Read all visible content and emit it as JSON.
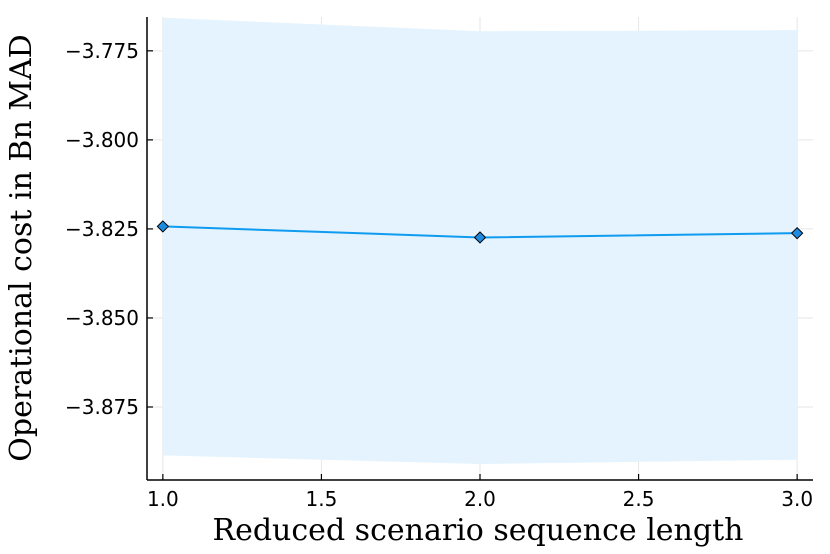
{
  "chart_data": {
    "type": "line",
    "title": "",
    "xlabel": "Reduced scenario sequence length",
    "ylabel": "Operational cost in Bn MAD",
    "xlim": [
      0.95,
      3.05
    ],
    "ylim": [
      -3.8955,
      -3.7655
    ],
    "xticks": [
      1.0,
      1.5,
      2.0,
      2.5,
      3.0
    ],
    "xtick_labels": [
      "1.0",
      "1.5",
      "2.0",
      "2.5",
      "3.0"
    ],
    "yticks": [
      -3.775,
      -3.8,
      -3.825,
      -3.85,
      -3.875
    ],
    "ytick_labels": [
      "−3.775",
      "−3.800",
      "−3.825",
      "−3.850",
      "−3.875"
    ],
    "grid": true,
    "legend": "none",
    "series": [
      {
        "x": [
          1.0,
          2.0,
          3.0
        ],
        "y": [
          -3.8243,
          -3.8274,
          -3.8262
        ],
        "band_upper": [
          -3.7657,
          -3.7695,
          -3.7692
        ],
        "band_lower": [
          -3.8886,
          -3.891,
          -3.8898
        ],
        "line_color": "#0f9bf0",
        "marker_fill": "#1f8be0",
        "band_color": "#e4f3fd",
        "marker": "diamond"
      }
    ]
  }
}
